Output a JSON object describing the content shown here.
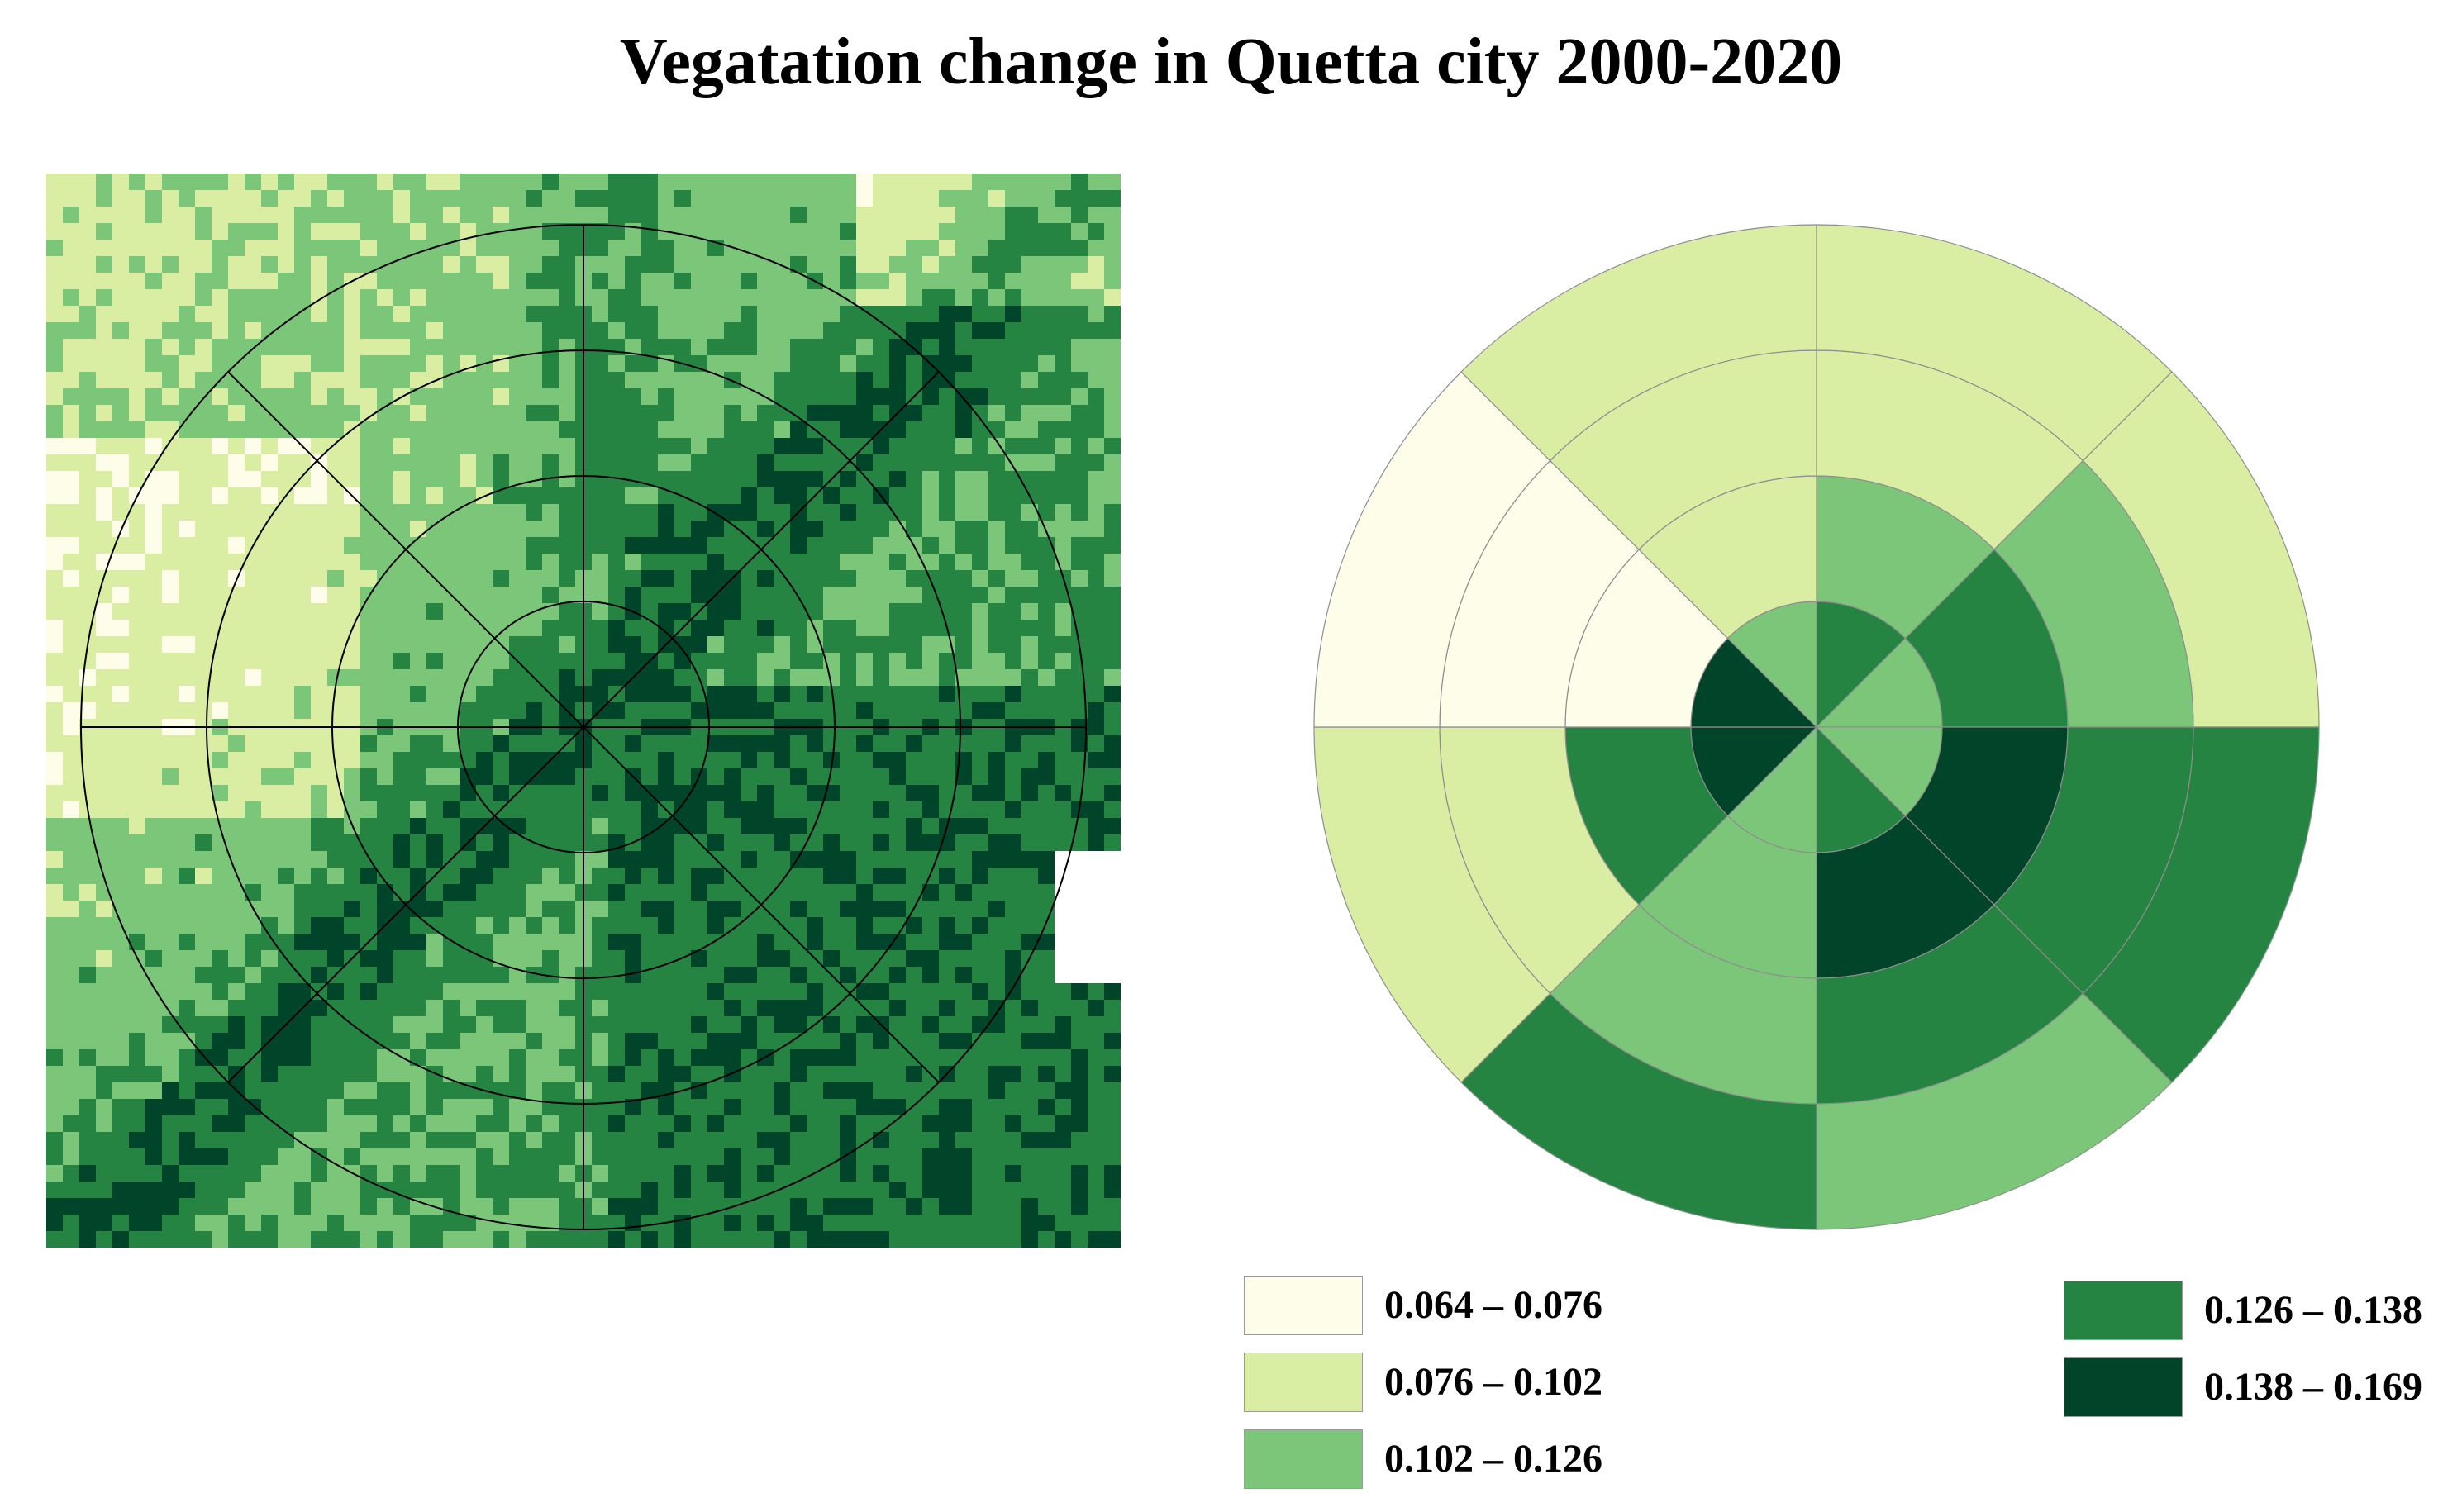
{
  "title": "Vegatation change in Quetta city 2000-2020",
  "colors": {
    "class1": "#fefde9",
    "class2": "#d9eda3",
    "class3": "#7cc67a",
    "class4": "#268443",
    "class5": "#00442a",
    "outline": "#000000",
    "pie_stroke": "#8e8e8e"
  },
  "legend": [
    {
      "label": "0.064 – 0.076",
      "color_class": "class1"
    },
    {
      "label": "0.076 – 0.102",
      "color_class": "class2"
    },
    {
      "label": "0.102 – 0.126",
      "color_class": "class3"
    },
    {
      "label": "0.126 – 0.138",
      "color_class": "class4"
    },
    {
      "label": "0.138 – 0.169",
      "color_class": "class5"
    }
  ],
  "raster_map": {
    "rings": 4,
    "sectors": 8,
    "description_classes": [
      "class1",
      "class2",
      "class3",
      "class4",
      "class5"
    ]
  },
  "zonal_chart": {
    "rings": 4,
    "sectors": 8,
    "sector_order": [
      "NNE",
      "ENE",
      "ESE",
      "SSE",
      "SSW",
      "WSW",
      "WNW",
      "NNW"
    ],
    "classes_by_ring": [
      [
        "class4",
        "class3",
        "class3",
        "class4",
        "class3",
        "class5",
        "class5",
        "class3"
      ],
      [
        "class3",
        "class4",
        "class5",
        "class5",
        "class3",
        "class4",
        "class1",
        "class2"
      ],
      [
        "class2",
        "class3",
        "class4",
        "class4",
        "class3",
        "class2",
        "class1",
        "class2"
      ],
      [
        "class2",
        "class2",
        "class4",
        "class3",
        "class4",
        "class2",
        "class1",
        "class2"
      ]
    ]
  }
}
